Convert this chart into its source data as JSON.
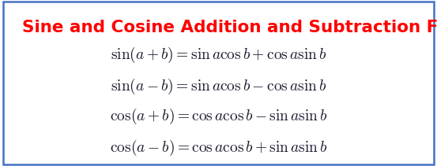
{
  "title": "Sine and Cosine Addition and Subtraction Formulas",
  "title_color": "#ff0000",
  "title_fontsize": 15.5,
  "formulas": [
    "\\sin(a+b) = \\sin a\\cos b + \\cos a\\sin b",
    "\\sin(a-b) = \\sin a\\cos b - \\cos a\\sin b",
    "\\cos(a+b) = \\cos a\\cos b - \\sin a\\sin b",
    "\\cos(a-b) = \\cos a\\cos b + \\sin a\\sin b"
  ],
  "formula_fontsize": 14,
  "formula_color": "#1a1a2e",
  "background_color": "#ffffff",
  "border_color": "#4472c4",
  "border_linewidth": 1.8,
  "fig_width": 5.53,
  "fig_height": 2.11,
  "dpi": 100
}
